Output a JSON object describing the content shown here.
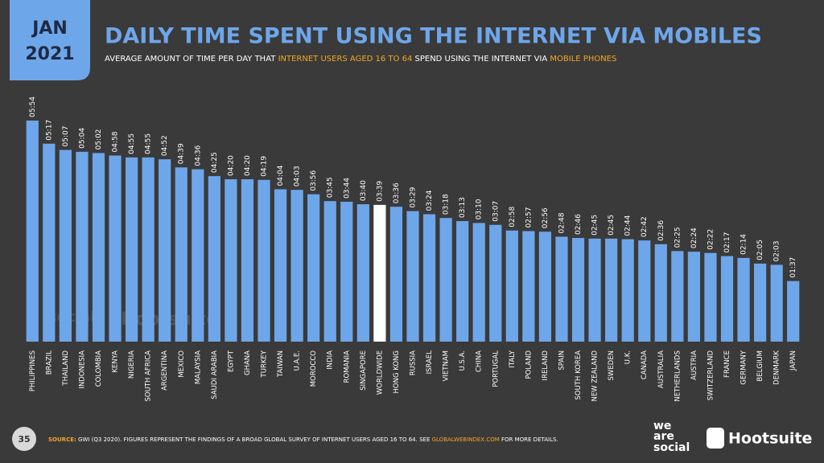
{
  "header": {
    "month": "JAN",
    "year": "2021"
  },
  "chart_data": {
    "type": "bar",
    "title": "DAILY TIME SPENT USING THE INTERNET VIA MOBILES",
    "subtitle": [
      "AVERAGE AMOUNT OF TIME PER DAY THAT ",
      "INTERNET USERS AGED 16 TO 64",
      " SPEND USING THE INTERNET VIA ",
      "MOBILE PHONES"
    ],
    "categories": [
      "PHILIPPINES",
      "BRAZIL",
      "THAILAND",
      "INDONESIA",
      "COLOMBIA",
      "KENYA",
      "NIGERIA",
      "SOUTH AFRICA",
      "ARGENTINA",
      "MEXICO",
      "MALAYSIA",
      "SAUDI ARABIA",
      "EGYPT",
      "GHANA",
      "TURKEY",
      "TAIWAN",
      "U.A.E.",
      "MOROCCO",
      "INDIA",
      "ROMANIA",
      "SINGAPORE",
      "WORLDWIDE",
      "HONG KONG",
      "RUSSIA",
      "ISRAEL",
      "VIETNAM",
      "U.S.A.",
      "CHINA",
      "PORTUGAL",
      "ITALY",
      "POLAND",
      "IRELAND",
      "SPAIN",
      "SOUTH KOREA",
      "NEW ZEALAND",
      "SWEDEN",
      "U.K.",
      "CANADA",
      "AUSTRALIA",
      "NETHERLANDS",
      "AUSTRIA",
      "SWITZERLAND",
      "FRANCE",
      "GERMANY",
      "BELGIUM",
      "DENMARK",
      "JAPAN"
    ],
    "values": [
      354,
      317,
      307,
      304,
      302,
      298,
      295,
      295,
      292,
      279,
      276,
      265,
      260,
      260,
      259,
      244,
      243,
      236,
      225,
      224,
      220,
      219,
      216,
      209,
      204,
      198,
      193,
      190,
      187,
      178,
      177,
      176,
      168,
      166,
      165,
      165,
      164,
      162,
      156,
      145,
      144,
      142,
      137,
      134,
      125,
      123,
      97
    ],
    "value_labels": [
      "05:54",
      "05:17",
      "05:07",
      "05:04",
      "05:02",
      "04:58",
      "04:55",
      "04:55",
      "04:52",
      "04:39",
      "04:36",
      "04:25",
      "04:20",
      "04:20",
      "04:19",
      "04:04",
      "04:03",
      "03:56",
      "03:45",
      "03:44",
      "03:40",
      "03:39",
      "03:36",
      "03:29",
      "03:24",
      "03:18",
      "03:13",
      "03:10",
      "03:07",
      "02:58",
      "02:57",
      "02:56",
      "02:48",
      "02:46",
      "02:45",
      "02:45",
      "02:44",
      "02:42",
      "02:36",
      "02:25",
      "02:24",
      "02:22",
      "02:17",
      "02:14",
      "02:05",
      "02:03",
      "01:37"
    ],
    "color": "#6ea6ea",
    "highlight": "WORLDWIDE",
    "highlight_color": "#ffffff"
  },
  "footer": {
    "page": "35",
    "source_label": "SOURCE:",
    "source_text": " GWI (Q3 2020). FIGURES REPRESENT THE FINDINGS OF A BROAD GLOBAL SURVEY OF INTERNET USERS AGED 16 TO 64. SEE ",
    "source_link": "GLOBALWEBINDEX.COM",
    "source_end": " FOR MORE DETAILS."
  },
  "logos": {
    "we": "we",
    "are": "are",
    "social": "social",
    "hootsuite": "Hootsuite"
  }
}
